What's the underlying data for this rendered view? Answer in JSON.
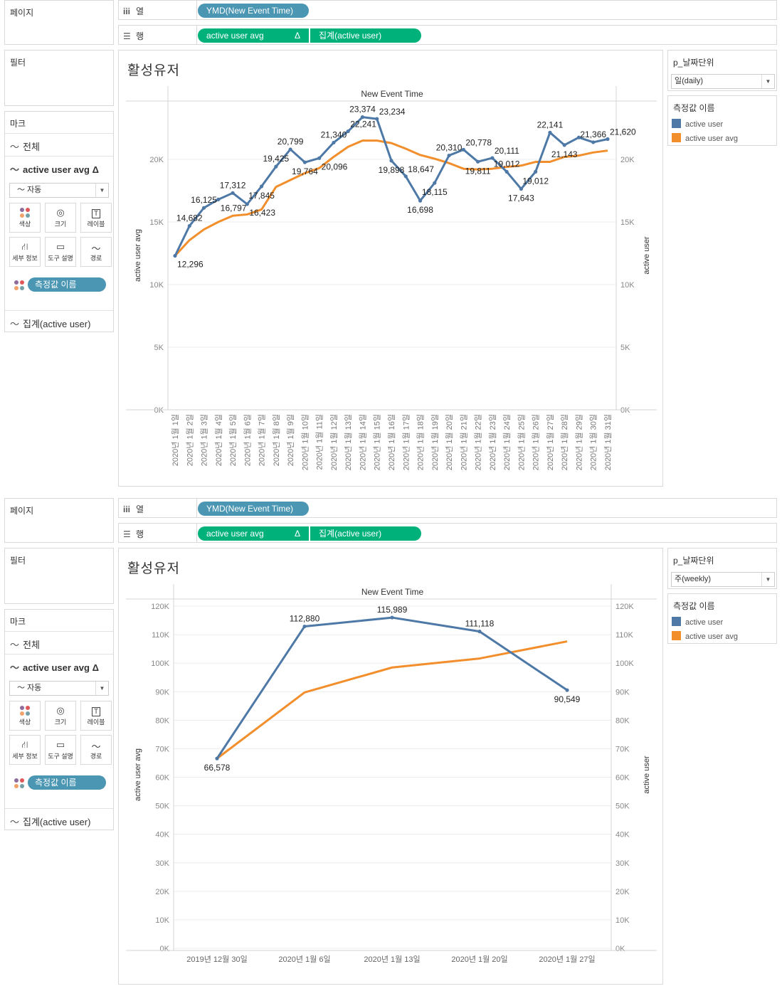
{
  "ui": {
    "page_label": "페이지",
    "filter_label": "필터",
    "marks_label": "마크",
    "marks_all": "전체",
    "marks_avg": "active user avg",
    "delta": "Δ",
    "mark_type": "자동",
    "mark_buttons": [
      "색상",
      "크기",
      "레이블",
      "세부 정보",
      "도구 설명",
      "경로"
    ],
    "measure_pill": "측정값 이름",
    "marks_agg": "집계(active user)",
    "columns_label": "열",
    "rows_label": "행",
    "column_pill": "YMD(New Event Time)",
    "row_pills": [
      "active user avg",
      "집계(active user)"
    ],
    "param_title": "p_날짜단위",
    "legend_title": "측정값 이름",
    "legend_items": [
      {
        "label": "active user",
        "color": "#4e79a7"
      },
      {
        "label": "active user avg",
        "color": "#f28e2b"
      }
    ],
    "chart_title": "활성유저",
    "accent_blue": "#4a96b3",
    "accent_green": "#00b27a"
  },
  "panels": [
    {
      "param_value": "일(daily)"
    },
    {
      "param_value": "주(weekly)"
    }
  ],
  "chart_data": [
    {
      "type": "line",
      "header": "New Event Time",
      "left_axis_title": "active user avg",
      "right_axis_title": "active user",
      "yticks": [
        0,
        5000,
        10000,
        15000,
        20000
      ],
      "ytick_labels": [
        "0K",
        "5K",
        "10K",
        "15K",
        "20K"
      ],
      "ylim": [
        0,
        24700
      ],
      "grid": true,
      "categories": [
        "2020년 1월 1일",
        "2020년 1월 2일",
        "2020년 1월 3일",
        "2020년 1월 4일",
        "2020년 1월 5일",
        "2020년 1월 6일",
        "2020년 1월 7일",
        "2020년 1월 8일",
        "2020년 1월 9일",
        "2020년 1월 10일",
        "2020년 1월 11일",
        "2020년 1월 12일",
        "2020년 1월 13일",
        "2020년 1월 14일",
        "2020년 1월 15일",
        "2020년 1월 16일",
        "2020년 1월 17일",
        "2020년 1월 18일",
        "2020년 1월 19일",
        "2020년 1월 20일",
        "2020년 1월 21일",
        "2020년 1월 22일",
        "2020년 1월 23일",
        "2020년 1월 24일",
        "2020년 1월 25일",
        "2020년 1월 26일",
        "2020년 1월 27일",
        "2020년 1월 28일",
        "2020년 1월 29일",
        "2020년 1월 30일",
        "2020년 1월 31일"
      ],
      "series": [
        {
          "name": "active user",
          "color": "#4e79a7",
          "values": [
            12296,
            14682,
            16125,
            16797,
            17312,
            16423,
            17845,
            19425,
            20799,
            19764,
            20096,
            21340,
            22241,
            23374,
            23234,
            19898,
            18647,
            16698,
            18115,
            20310,
            20778,
            19811,
            20111,
            19012,
            17643,
            19012,
            22141,
            21143,
            21750,
            21366,
            21620
          ],
          "labels": [
            "12,296",
            "14,682",
            "16,125",
            "16,797",
            "17,312",
            "16,423",
            "17,845",
            "19,425",
            "20,799",
            "19,764",
            "20,096",
            "21,340",
            "22,241",
            "23,374",
            "23,234",
            "19,898",
            "18,647",
            "16,698",
            "18,115",
            "20,310",
            "20,778",
            "19,811",
            "20,111",
            "19,012",
            "17,643",
            "19,012",
            "22,141",
            "21,143",
            "",
            "21,366",
            "21,620"
          ]
        },
        {
          "name": "active user avg",
          "color": "#f28e2b",
          "values": [
            12296,
            13550,
            14400,
            15000,
            15500,
            15600,
            16000,
            17800,
            18350,
            18900,
            19300,
            20200,
            21000,
            21500,
            21500,
            21300,
            20850,
            20350,
            20050,
            19700,
            19250,
            19200,
            19250,
            19400,
            19500,
            19800,
            19800,
            20200,
            20300,
            20550,
            20700
          ]
        }
      ]
    },
    {
      "type": "line",
      "header": "New Event Time",
      "left_axis_title": "active user avg",
      "right_axis_title": "active user",
      "yticks": [
        0,
        10000,
        20000,
        30000,
        40000,
        50000,
        60000,
        70000,
        80000,
        90000,
        100000,
        110000,
        120000
      ],
      "ytick_labels": [
        "0K",
        "10K",
        "20K",
        "30K",
        "40K",
        "50K",
        "60K",
        "70K",
        "80K",
        "90K",
        "100K",
        "110K",
        "120K"
      ],
      "ylim": [
        0,
        120000
      ],
      "grid": true,
      "categories": [
        "2019년 12월 30일",
        "2020년 1월 6일",
        "2020년 1월 13일",
        "2020년 1월 20일",
        "2020년 1월 27일"
      ],
      "series": [
        {
          "name": "active user",
          "color": "#4e79a7",
          "values": [
            66578,
            112880,
            115989,
            111118,
            90549
          ],
          "labels": [
            "66,578",
            "112,880",
            "115,989",
            "111,118",
            "90,549"
          ]
        },
        {
          "name": "active user avg",
          "color": "#f28e2b",
          "values": [
            66578,
            89729,
            98482,
            101641,
            107634
          ]
        }
      ]
    }
  ]
}
